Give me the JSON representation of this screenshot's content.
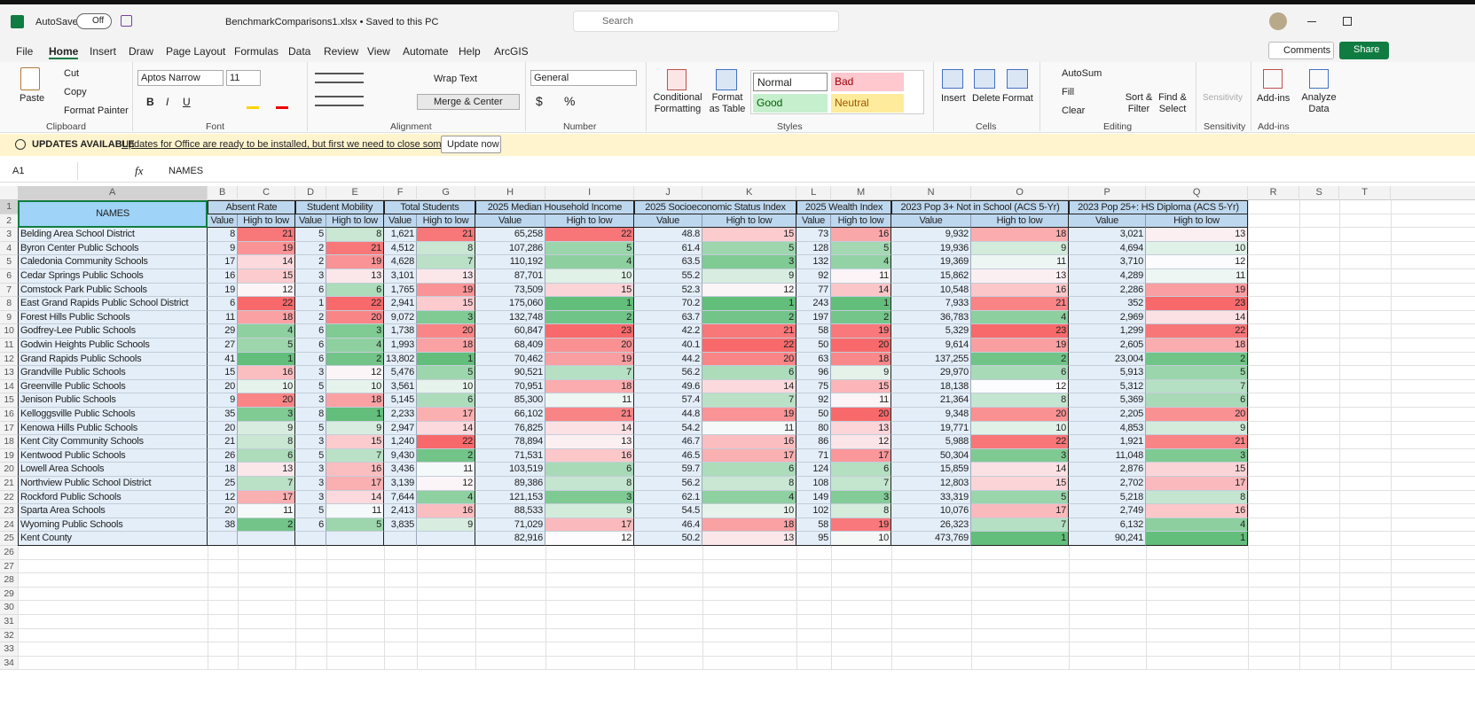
{
  "title_bar": {
    "autosave": "AutoSave",
    "autosave_state": "Off",
    "file_name": "BenchmarkComparisons1.xlsx • Saved to this PC",
    "search": "Search"
  },
  "menu": [
    "File",
    "Home",
    "Insert",
    "Draw",
    "Page Layout",
    "Formulas",
    "Data",
    "Review",
    "View",
    "Automate",
    "Help",
    "ArcGIS"
  ],
  "menu_right": {
    "comments": "Comments",
    "share": "Share"
  },
  "ribbon": {
    "clipboard": {
      "paste": "Paste",
      "cut": "Cut",
      "copy": "Copy",
      "format_painter": "Format Painter",
      "label": "Clipboard"
    },
    "font": {
      "name": "Aptos Narrow",
      "size": "11",
      "bold": "B",
      "italic": "I",
      "underline": "U",
      "label": "Font"
    },
    "alignment": {
      "wrap_text": "Wrap Text",
      "merge": "Merge & Center",
      "label": "Alignment"
    },
    "number": {
      "format": "General",
      "currency": "$",
      "percent": "%",
      "label": "Number"
    },
    "styles": {
      "conditional": "Conditional Formatting",
      "format_table": "Format as Table",
      "normal": "Normal",
      "bad": "Bad",
      "good": "Good",
      "neutral": "Neutral",
      "label": "Styles"
    },
    "cells": {
      "insert": "Insert",
      "delete": "Delete",
      "format": "Format",
      "label": "Cells"
    },
    "editing": {
      "autosum": "AutoSum",
      "fill": "Fill",
      "clear": "Clear",
      "sort": "Sort & Filter",
      "find": "Find & Select",
      "label": "Editing"
    },
    "sensitivity": {
      "button": "Sensitivity",
      "label": "Sensitivity"
    },
    "addins": {
      "button": "Add-ins",
      "label": "Add-ins"
    },
    "analyze": "Analyze Data"
  },
  "update_bar": {
    "title": "UPDATES AVAILABLE",
    "message": "Updates for Office are ready to be installed, but first we need to close some apps.",
    "button": "Update now"
  },
  "formula_bar": {
    "name_box": "A1",
    "fx": "fx",
    "content": "NAMES"
  },
  "sheet": {
    "columns": [
      "A",
      "B",
      "C",
      "D",
      "E",
      "F",
      "G",
      "H",
      "I",
      "J",
      "K",
      "L",
      "M",
      "N",
      "O",
      "P",
      "Q",
      "R",
      "S",
      "T"
    ],
    "row_numbers": [
      1,
      2,
      3,
      4,
      5,
      6,
      7,
      8,
      9,
      10,
      11,
      12,
      13,
      14,
      15,
      16,
      17,
      18,
      19,
      20,
      21,
      22,
      23,
      24,
      25,
      26,
      27,
      28,
      29,
      30,
      31,
      32,
      33,
      34
    ],
    "header_groups": [
      "NAMES",
      "Absent Rate",
      "Student Mobility",
      "Total Students",
      "2025 Median Household Income",
      "2025 Socioeconomic Status Index",
      "2025 Wealth Index",
      "2023 Pop 3+ Not in School (ACS 5-Yr)",
      "2023 Pop 25+: HS Diploma (ACS 5-Yr)"
    ],
    "sub_headers": [
      "Value",
      "High to low",
      "Value",
      "High to low",
      "Value",
      "High to low",
      "Value",
      "High to low",
      "Value",
      "High to low",
      "Value",
      "High to low",
      "Value",
      "High to low",
      "Value",
      "High to low"
    ],
    "rows": [
      [
        "Belding Area School District",
        "8",
        "21",
        "5",
        "8",
        "1,621",
        "21",
        "65,258",
        "22",
        "48.8",
        "15",
        "73",
        "16",
        "9,932",
        "18",
        "3,021",
        "13"
      ],
      [
        "Byron Center Public Schools",
        "9",
        "19",
        "2",
        "21",
        "4,512",
        "8",
        "107,286",
        "5",
        "61.4",
        "5",
        "128",
        "5",
        "19,936",
        "9",
        "4,694",
        "10"
      ],
      [
        "Caledonia Community Schools",
        "17",
        "14",
        "2",
        "19",
        "4,628",
        "7",
        "110,192",
        "4",
        "63.5",
        "3",
        "132",
        "4",
        "19,369",
        "11",
        "3,710",
        "12"
      ],
      [
        "Cedar Springs Public Schools",
        "16",
        "15",
        "3",
        "13",
        "3,101",
        "13",
        "87,701",
        "10",
        "55.2",
        "9",
        "92",
        "11",
        "15,862",
        "13",
        "4,289",
        "11"
      ],
      [
        "Comstock Park Public Schools",
        "19",
        "12",
        "6",
        "6",
        "1,765",
        "19",
        "73,509",
        "15",
        "52.3",
        "12",
        "77",
        "14",
        "10,548",
        "16",
        "2,286",
        "19"
      ],
      [
        "East Grand Rapids Public School District",
        "6",
        "22",
        "1",
        "22",
        "2,941",
        "15",
        "175,060",
        "1",
        "70.2",
        "1",
        "243",
        "1",
        "7,933",
        "21",
        "352",
        "23"
      ],
      [
        "Forest Hills Public Schools",
        "11",
        "18",
        "2",
        "20",
        "9,072",
        "3",
        "132,748",
        "2",
        "63.7",
        "2",
        "197",
        "2",
        "36,783",
        "4",
        "2,969",
        "14"
      ],
      [
        "Godfrey-Lee Public Schools",
        "29",
        "4",
        "6",
        "3",
        "1,738",
        "20",
        "60,847",
        "23",
        "42.2",
        "21",
        "58",
        "19",
        "5,329",
        "23",
        "1,299",
        "22"
      ],
      [
        "Godwin Heights Public Schools",
        "27",
        "5",
        "6",
        "4",
        "1,993",
        "18",
        "68,409",
        "20",
        "40.1",
        "22",
        "50",
        "20",
        "9,614",
        "19",
        "2,605",
        "18"
      ],
      [
        "Grand Rapids Public Schools",
        "41",
        "1",
        "6",
        "2",
        "13,802",
        "1",
        "70,462",
        "19",
        "44.2",
        "20",
        "63",
        "18",
        "137,255",
        "2",
        "23,004",
        "2"
      ],
      [
        "Grandville Public Schools",
        "15",
        "16",
        "3",
        "12",
        "5,476",
        "5",
        "90,521",
        "7",
        "56.2",
        "6",
        "96",
        "9",
        "29,970",
        "6",
        "5,913",
        "5"
      ],
      [
        "Greenville Public Schools",
        "20",
        "10",
        "5",
        "10",
        "3,561",
        "10",
        "70,951",
        "18",
        "49.6",
        "14",
        "75",
        "15",
        "18,138",
        "12",
        "5,312",
        "7"
      ],
      [
        "Jenison Public Schools",
        "9",
        "20",
        "3",
        "18",
        "5,145",
        "6",
        "85,300",
        "11",
        "57.4",
        "7",
        "92",
        "11",
        "21,364",
        "8",
        "5,369",
        "6"
      ],
      [
        "Kelloggsville Public Schools",
        "35",
        "3",
        "8",
        "1",
        "2,233",
        "17",
        "66,102",
        "21",
        "44.8",
        "19",
        "50",
        "20",
        "9,348",
        "20",
        "2,205",
        "20"
      ],
      [
        "Kenowa Hills Public Schools",
        "20",
        "9",
        "5",
        "9",
        "2,947",
        "14",
        "76,825",
        "14",
        "54.2",
        "11",
        "80",
        "13",
        "19,771",
        "10",
        "4,853",
        "9"
      ],
      [
        "Kent City Community Schools",
        "21",
        "8",
        "3",
        "15",
        "1,240",
        "22",
        "78,894",
        "13",
        "46.7",
        "16",
        "86",
        "12",
        "5,988",
        "22",
        "1,921",
        "21"
      ],
      [
        "Kentwood Public Schools",
        "26",
        "6",
        "5",
        "7",
        "9,430",
        "2",
        "71,531",
        "16",
        "46.5",
        "17",
        "71",
        "17",
        "50,304",
        "3",
        "11,048",
        "3"
      ],
      [
        "Lowell Area Schools",
        "18",
        "13",
        "3",
        "16",
        "3,436",
        "11",
        "103,519",
        "6",
        "59.7",
        "6",
        "124",
        "6",
        "15,859",
        "14",
        "2,876",
        "15"
      ],
      [
        "Northview Public School District",
        "25",
        "7",
        "3",
        "17",
        "3,139",
        "12",
        "89,386",
        "8",
        "56.2",
        "8",
        "108",
        "7",
        "12,803",
        "15",
        "2,702",
        "17"
      ],
      [
        "Rockford Public Schools",
        "12",
        "17",
        "3",
        "14",
        "7,644",
        "4",
        "121,153",
        "3",
        "62.1",
        "4",
        "149",
        "3",
        "33,319",
        "5",
        "5,218",
        "8"
      ],
      [
        "Sparta Area Schools",
        "20",
        "11",
        "5",
        "11",
        "2,413",
        "16",
        "88,533",
        "9",
        "54.5",
        "10",
        "102",
        "8",
        "10,076",
        "17",
        "2,749",
        "16"
      ],
      [
        "Wyoming Public Schools",
        "38",
        "2",
        "6",
        "5",
        "3,835",
        "9",
        "71,029",
        "17",
        "46.4",
        "18",
        "58",
        "19",
        "26,323",
        "7",
        "6,132",
        "4"
      ],
      [
        "Kent County",
        null,
        null,
        null,
        null,
        null,
        null,
        "82,916",
        "12",
        "50.2",
        "13",
        "95",
        "10",
        "473,769",
        "1",
        "90,241",
        "1"
      ]
    ]
  }
}
